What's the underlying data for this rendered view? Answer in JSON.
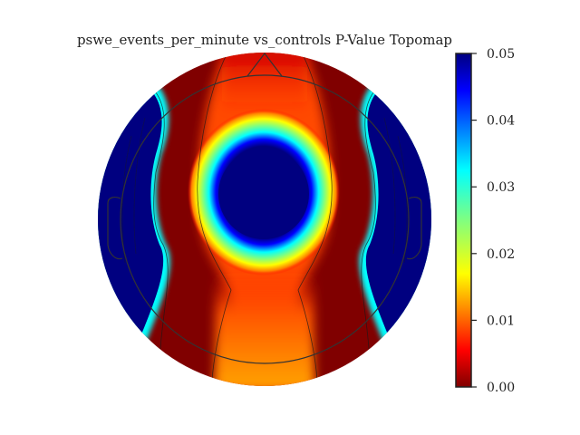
{
  "chart_data": {
    "type": "heatmap",
    "subtype": "topomap",
    "title": "pswe_events_per_minute vs_controls P-Value Topomap",
    "colormap": "jet",
    "colorbar": {
      "min": 0.0,
      "max": 0.05,
      "ticks": [
        0.0,
        0.01,
        0.02,
        0.03,
        0.04,
        0.05
      ],
      "tick_labels": [
        "0.00",
        "0.01",
        "0.02",
        "0.03",
        "0.04",
        "0.05"
      ],
      "placement": "right"
    },
    "regions": [
      {
        "name": "central",
        "value": 0.05
      },
      {
        "name": "left lateral",
        "value": 0.05
      },
      {
        "name": "right lateral",
        "value": 0.05
      },
      {
        "name": "left midline band",
        "value": 0.0
      },
      {
        "name": "right midline band",
        "value": 0.0
      },
      {
        "name": "frontal midline",
        "value": 0.005
      },
      {
        "name": "occipital midline",
        "value": 0.012
      }
    ],
    "grid": false
  }
}
